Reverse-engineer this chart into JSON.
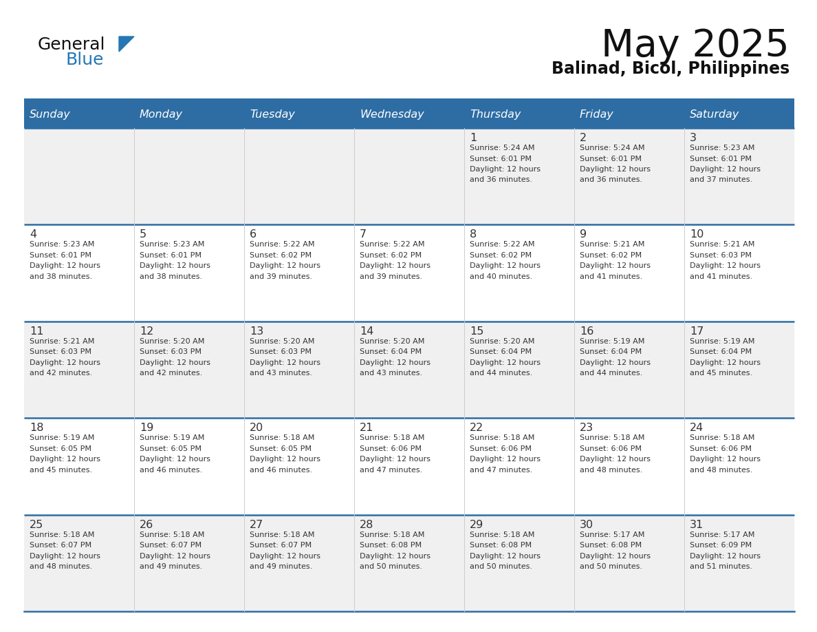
{
  "title": "May 2025",
  "subtitle": "Balinad, Bicol, Philippines",
  "header_bg": "#2E6DA4",
  "header_text_color": "#FFFFFF",
  "day_names": [
    "Sunday",
    "Monday",
    "Tuesday",
    "Wednesday",
    "Thursday",
    "Friday",
    "Saturday"
  ],
  "row_bg_light": "#F0F0F0",
  "row_bg_white": "#FFFFFF",
  "separator_color": "#2E6DA4",
  "text_color": "#333333",
  "logo_black_color": "#111111",
  "logo_blue_color": "#2477B3",
  "calendar_data": [
    [
      null,
      null,
      null,
      null,
      {
        "day": 1,
        "sunrise": "5:24 AM",
        "sunset": "6:01 PM",
        "daylight": "12 hours",
        "daylight2": "and 36 minutes."
      },
      {
        "day": 2,
        "sunrise": "5:24 AM",
        "sunset": "6:01 PM",
        "daylight": "12 hours",
        "daylight2": "and 36 minutes."
      },
      {
        "day": 3,
        "sunrise": "5:23 AM",
        "sunset": "6:01 PM",
        "daylight": "12 hours",
        "daylight2": "and 37 minutes."
      }
    ],
    [
      {
        "day": 4,
        "sunrise": "5:23 AM",
        "sunset": "6:01 PM",
        "daylight": "12 hours",
        "daylight2": "and 38 minutes."
      },
      {
        "day": 5,
        "sunrise": "5:23 AM",
        "sunset": "6:01 PM",
        "daylight": "12 hours",
        "daylight2": "and 38 minutes."
      },
      {
        "day": 6,
        "sunrise": "5:22 AM",
        "sunset": "6:02 PM",
        "daylight": "12 hours",
        "daylight2": "and 39 minutes."
      },
      {
        "day": 7,
        "sunrise": "5:22 AM",
        "sunset": "6:02 PM",
        "daylight": "12 hours",
        "daylight2": "and 39 minutes."
      },
      {
        "day": 8,
        "sunrise": "5:22 AM",
        "sunset": "6:02 PM",
        "daylight": "12 hours",
        "daylight2": "and 40 minutes."
      },
      {
        "day": 9,
        "sunrise": "5:21 AM",
        "sunset": "6:02 PM",
        "daylight": "12 hours",
        "daylight2": "and 41 minutes."
      },
      {
        "day": 10,
        "sunrise": "5:21 AM",
        "sunset": "6:03 PM",
        "daylight": "12 hours",
        "daylight2": "and 41 minutes."
      }
    ],
    [
      {
        "day": 11,
        "sunrise": "5:21 AM",
        "sunset": "6:03 PM",
        "daylight": "12 hours",
        "daylight2": "and 42 minutes."
      },
      {
        "day": 12,
        "sunrise": "5:20 AM",
        "sunset": "6:03 PM",
        "daylight": "12 hours",
        "daylight2": "and 42 minutes."
      },
      {
        "day": 13,
        "sunrise": "5:20 AM",
        "sunset": "6:03 PM",
        "daylight": "12 hours",
        "daylight2": "and 43 minutes."
      },
      {
        "day": 14,
        "sunrise": "5:20 AM",
        "sunset": "6:04 PM",
        "daylight": "12 hours",
        "daylight2": "and 43 minutes."
      },
      {
        "day": 15,
        "sunrise": "5:20 AM",
        "sunset": "6:04 PM",
        "daylight": "12 hours",
        "daylight2": "and 44 minutes."
      },
      {
        "day": 16,
        "sunrise": "5:19 AM",
        "sunset": "6:04 PM",
        "daylight": "12 hours",
        "daylight2": "and 44 minutes."
      },
      {
        "day": 17,
        "sunrise": "5:19 AM",
        "sunset": "6:04 PM",
        "daylight": "12 hours",
        "daylight2": "and 45 minutes."
      }
    ],
    [
      {
        "day": 18,
        "sunrise": "5:19 AM",
        "sunset": "6:05 PM",
        "daylight": "12 hours",
        "daylight2": "and 45 minutes."
      },
      {
        "day": 19,
        "sunrise": "5:19 AM",
        "sunset": "6:05 PM",
        "daylight": "12 hours",
        "daylight2": "and 46 minutes."
      },
      {
        "day": 20,
        "sunrise": "5:18 AM",
        "sunset": "6:05 PM",
        "daylight": "12 hours",
        "daylight2": "and 46 minutes."
      },
      {
        "day": 21,
        "sunrise": "5:18 AM",
        "sunset": "6:06 PM",
        "daylight": "12 hours",
        "daylight2": "and 47 minutes."
      },
      {
        "day": 22,
        "sunrise": "5:18 AM",
        "sunset": "6:06 PM",
        "daylight": "12 hours",
        "daylight2": "and 47 minutes."
      },
      {
        "day": 23,
        "sunrise": "5:18 AM",
        "sunset": "6:06 PM",
        "daylight": "12 hours",
        "daylight2": "and 48 minutes."
      },
      {
        "day": 24,
        "sunrise": "5:18 AM",
        "sunset": "6:06 PM",
        "daylight": "12 hours",
        "daylight2": "and 48 minutes."
      }
    ],
    [
      {
        "day": 25,
        "sunrise": "5:18 AM",
        "sunset": "6:07 PM",
        "daylight": "12 hours",
        "daylight2": "and 48 minutes."
      },
      {
        "day": 26,
        "sunrise": "5:18 AM",
        "sunset": "6:07 PM",
        "daylight": "12 hours",
        "daylight2": "and 49 minutes."
      },
      {
        "day": 27,
        "sunrise": "5:18 AM",
        "sunset": "6:07 PM",
        "daylight": "12 hours",
        "daylight2": "and 49 minutes."
      },
      {
        "day": 28,
        "sunrise": "5:18 AM",
        "sunset": "6:08 PM",
        "daylight": "12 hours",
        "daylight2": "and 50 minutes."
      },
      {
        "day": 29,
        "sunrise": "5:18 AM",
        "sunset": "6:08 PM",
        "daylight": "12 hours",
        "daylight2": "and 50 minutes."
      },
      {
        "day": 30,
        "sunrise": "5:17 AM",
        "sunset": "6:08 PM",
        "daylight": "12 hours",
        "daylight2": "and 50 minutes."
      },
      {
        "day": 31,
        "sunrise": "5:17 AM",
        "sunset": "6:09 PM",
        "daylight": "12 hours",
        "daylight2": "and 51 minutes."
      }
    ]
  ]
}
